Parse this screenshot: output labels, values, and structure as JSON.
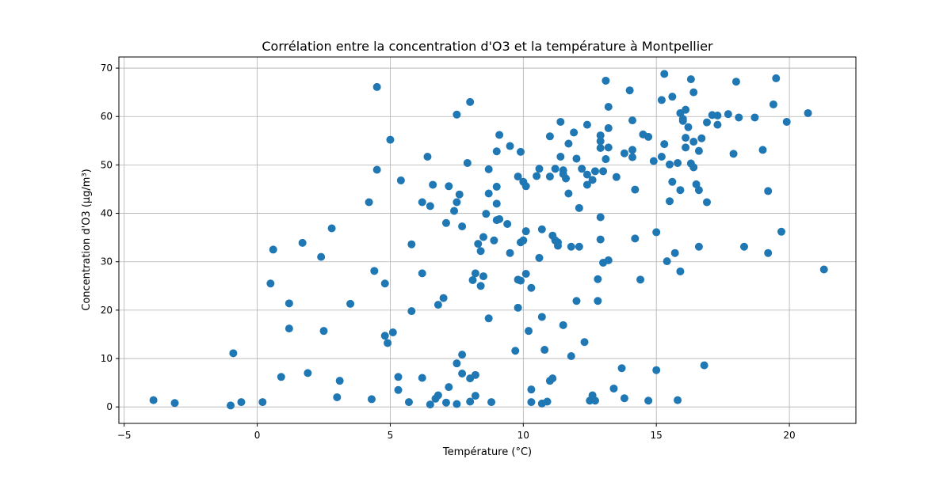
{
  "chart_data": {
    "type": "scatter",
    "title": "Corrélation entre la concentration d'O3 et la température à Montpellier",
    "xlabel": "Température (°C)",
    "ylabel": "Concentration d'O3 (µg/m³)",
    "xlim": [
      -5.2,
      22.5
    ],
    "ylim": [
      -3.4,
      72.3
    ],
    "xticks": [
      -5,
      0,
      5,
      10,
      15,
      20
    ],
    "xtick_labels": [
      "−5",
      "0",
      "5",
      "10",
      "15",
      "20"
    ],
    "yticks": [
      0,
      10,
      20,
      30,
      40,
      50,
      60,
      70
    ],
    "ytick_labels": [
      "0",
      "10",
      "20",
      "30",
      "40",
      "50",
      "60",
      "70"
    ],
    "grid": true,
    "point_color": "#1f77b4",
    "points": [
      [
        -3.9,
        1.4
      ],
      [
        -3.1,
        0.8
      ],
      [
        -1.0,
        0.3
      ],
      [
        -0.9,
        11.1
      ],
      [
        -0.6,
        1.0
      ],
      [
        0.2,
        1.0
      ],
      [
        0.5,
        25.5
      ],
      [
        0.6,
        32.5
      ],
      [
        0.9,
        6.2
      ],
      [
        1.2,
        21.4
      ],
      [
        1.2,
        16.2
      ],
      [
        1.7,
        33.9
      ],
      [
        1.9,
        7.0
      ],
      [
        2.4,
        31.0
      ],
      [
        2.5,
        15.7
      ],
      [
        2.8,
        36.9
      ],
      [
        3.0,
        2.0
      ],
      [
        3.1,
        5.4
      ],
      [
        3.5,
        21.3
      ],
      [
        4.2,
        42.3
      ],
      [
        4.3,
        1.6
      ],
      [
        4.4,
        28.1
      ],
      [
        4.5,
        66.1
      ],
      [
        4.5,
        49.0
      ],
      [
        4.8,
        25.5
      ],
      [
        4.8,
        14.7
      ],
      [
        4.9,
        13.2
      ],
      [
        5.0,
        55.2
      ],
      [
        5.1,
        15.4
      ],
      [
        5.3,
        6.2
      ],
      [
        5.3,
        3.5
      ],
      [
        5.4,
        46.8
      ],
      [
        5.7,
        1.0
      ],
      [
        5.8,
        33.6
      ],
      [
        5.8,
        19.8
      ],
      [
        6.2,
        6.0
      ],
      [
        6.2,
        42.3
      ],
      [
        6.2,
        27.6
      ],
      [
        6.4,
        51.7
      ],
      [
        6.5,
        41.5
      ],
      [
        6.5,
        0.5
      ],
      [
        6.6,
        45.9
      ],
      [
        6.7,
        1.7
      ],
      [
        6.8,
        2.4
      ],
      [
        6.8,
        21.1
      ],
      [
        7.0,
        22.5
      ],
      [
        7.1,
        38.0
      ],
      [
        7.1,
        0.9
      ],
      [
        7.2,
        4.1
      ],
      [
        7.2,
        45.6
      ],
      [
        7.4,
        40.5
      ],
      [
        7.5,
        42.3
      ],
      [
        7.5,
        60.4
      ],
      [
        7.5,
        9.0
      ],
      [
        7.5,
        0.6
      ],
      [
        7.6,
        43.9
      ],
      [
        7.7,
        37.3
      ],
      [
        7.7,
        10.8
      ],
      [
        7.7,
        6.9
      ],
      [
        7.9,
        50.4
      ],
      [
        8.0,
        63.0
      ],
      [
        8.0,
        5.9
      ],
      [
        8.0,
        1.1
      ],
      [
        8.1,
        26.2
      ],
      [
        8.2,
        27.6
      ],
      [
        8.2,
        6.6
      ],
      [
        8.2,
        2.3
      ],
      [
        8.3,
        33.7
      ],
      [
        8.4,
        32.2
      ],
      [
        8.4,
        25.0
      ],
      [
        8.5,
        35.1
      ],
      [
        8.5,
        27.0
      ],
      [
        8.6,
        39.9
      ],
      [
        8.7,
        18.3
      ],
      [
        8.7,
        49.1
      ],
      [
        8.7,
        44.1
      ],
      [
        8.8,
        1.0
      ],
      [
        8.9,
        34.4
      ],
      [
        9.0,
        52.8
      ],
      [
        9.0,
        45.5
      ],
      [
        9.0,
        42.0
      ],
      [
        9.0,
        38.6
      ],
      [
        9.1,
        56.2
      ],
      [
        9.1,
        38.8
      ],
      [
        9.4,
        37.8
      ],
      [
        9.5,
        53.9
      ],
      [
        9.5,
        31.8
      ],
      [
        9.7,
        11.6
      ],
      [
        9.8,
        47.6
      ],
      [
        9.8,
        26.3
      ],
      [
        9.8,
        20.5
      ],
      [
        9.9,
        52.7
      ],
      [
        9.9,
        26.1
      ],
      [
        9.9,
        34.0
      ],
      [
        10.0,
        46.5
      ],
      [
        10.0,
        34.4
      ],
      [
        10.1,
        45.6
      ],
      [
        10.1,
        36.3
      ],
      [
        10.1,
        27.5
      ],
      [
        10.2,
        15.7
      ],
      [
        10.3,
        24.6
      ],
      [
        10.3,
        3.6
      ],
      [
        10.3,
        1.0
      ],
      [
        10.5,
        47.7
      ],
      [
        10.6,
        49.2
      ],
      [
        10.6,
        30.8
      ],
      [
        10.7,
        36.7
      ],
      [
        10.7,
        18.6
      ],
      [
        10.7,
        0.7
      ],
      [
        10.8,
        11.8
      ],
      [
        10.9,
        1.1
      ],
      [
        11.0,
        55.9
      ],
      [
        11.0,
        47.6
      ],
      [
        11.0,
        5.4
      ],
      [
        11.1,
        5.9
      ],
      [
        11.1,
        35.4
      ],
      [
        11.2,
        34.4
      ],
      [
        11.2,
        49.2
      ],
      [
        11.3,
        34.0
      ],
      [
        11.3,
        33.3
      ],
      [
        11.4,
        58.9
      ],
      [
        11.4,
        51.7
      ],
      [
        11.5,
        48.9
      ],
      [
        11.5,
        48.1
      ],
      [
        11.5,
        16.9
      ],
      [
        11.6,
        47.2
      ],
      [
        11.7,
        54.4
      ],
      [
        11.7,
        44.1
      ],
      [
        11.8,
        33.1
      ],
      [
        11.8,
        10.5
      ],
      [
        11.9,
        56.7
      ],
      [
        12.0,
        51.3
      ],
      [
        12.0,
        21.9
      ],
      [
        12.1,
        33.1
      ],
      [
        12.1,
        41.1
      ],
      [
        12.2,
        49.2
      ],
      [
        12.3,
        13.4
      ],
      [
        12.4,
        58.3
      ],
      [
        12.4,
        48.0
      ],
      [
        12.4,
        45.9
      ],
      [
        12.5,
        1.3
      ],
      [
        12.6,
        46.9
      ],
      [
        12.6,
        2.4
      ],
      [
        12.7,
        48.7
      ],
      [
        12.7,
        1.3
      ],
      [
        12.8,
        26.4
      ],
      [
        12.8,
        21.9
      ],
      [
        12.9,
        56.1
      ],
      [
        12.9,
        54.9
      ],
      [
        12.9,
        53.5
      ],
      [
        12.9,
        39.2
      ],
      [
        12.9,
        34.6
      ],
      [
        13.0,
        48.7
      ],
      [
        13.0,
        29.8
      ],
      [
        13.1,
        67.4
      ],
      [
        13.1,
        51.2
      ],
      [
        13.2,
        62.0
      ],
      [
        13.2,
        57.6
      ],
      [
        13.2,
        53.6
      ],
      [
        13.2,
        30.3
      ],
      [
        13.4,
        3.8
      ],
      [
        13.5,
        47.5
      ],
      [
        13.7,
        8.0
      ],
      [
        13.8,
        52.4
      ],
      [
        13.8,
        1.8
      ],
      [
        14.0,
        65.4
      ],
      [
        14.1,
        59.2
      ],
      [
        14.1,
        53.1
      ],
      [
        14.1,
        51.6
      ],
      [
        14.2,
        44.9
      ],
      [
        14.2,
        34.8
      ],
      [
        14.4,
        26.3
      ],
      [
        14.5,
        56.3
      ],
      [
        14.7,
        55.8
      ],
      [
        14.7,
        1.3
      ],
      [
        14.9,
        50.8
      ],
      [
        15.0,
        36.1
      ],
      [
        15.0,
        7.6
      ],
      [
        15.2,
        63.4
      ],
      [
        15.2,
        51.7
      ],
      [
        15.3,
        68.8
      ],
      [
        15.3,
        54.3
      ],
      [
        15.4,
        30.1
      ],
      [
        15.5,
        50.1
      ],
      [
        15.5,
        42.5
      ],
      [
        15.6,
        64.1
      ],
      [
        15.6,
        46.5
      ],
      [
        15.7,
        31.8
      ],
      [
        15.8,
        50.4
      ],
      [
        15.8,
        1.4
      ],
      [
        15.9,
        60.7
      ],
      [
        15.9,
        44.8
      ],
      [
        15.9,
        28.0
      ],
      [
        16.0,
        59.5
      ],
      [
        16.0,
        59.1
      ],
      [
        16.1,
        61.4
      ],
      [
        16.1,
        55.6
      ],
      [
        16.1,
        53.6
      ],
      [
        16.2,
        57.8
      ],
      [
        16.3,
        67.7
      ],
      [
        16.3,
        50.3
      ],
      [
        16.4,
        65.0
      ],
      [
        16.4,
        54.8
      ],
      [
        16.4,
        49.5
      ],
      [
        16.5,
        46.0
      ],
      [
        16.6,
        52.9
      ],
      [
        16.6,
        44.8
      ],
      [
        16.6,
        33.1
      ],
      [
        16.7,
        55.5
      ],
      [
        16.8,
        8.6
      ],
      [
        16.9,
        58.8
      ],
      [
        16.9,
        42.3
      ],
      [
        17.1,
        60.3
      ],
      [
        17.3,
        60.2
      ],
      [
        17.3,
        58.3
      ],
      [
        17.7,
        60.5
      ],
      [
        17.9,
        52.3
      ],
      [
        18.0,
        67.2
      ],
      [
        18.1,
        59.8
      ],
      [
        18.3,
        33.1
      ],
      [
        18.7,
        59.8
      ],
      [
        19.0,
        53.1
      ],
      [
        19.2,
        44.6
      ],
      [
        19.2,
        31.8
      ],
      [
        19.4,
        62.5
      ],
      [
        19.5,
        67.9
      ],
      [
        19.7,
        36.2
      ],
      [
        19.9,
        58.9
      ],
      [
        20.7,
        60.7
      ],
      [
        21.3,
        28.4
      ]
    ]
  }
}
